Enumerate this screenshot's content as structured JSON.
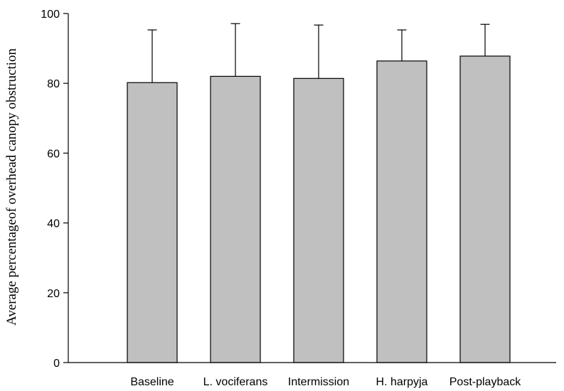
{
  "chart_data": {
    "type": "bar",
    "categories": [
      "Baseline",
      "L. vociferans",
      "Intermission",
      "H. harpyja",
      "Post-playback"
    ],
    "values": [
      80.2,
      82.0,
      81.4,
      86.4,
      87.8
    ],
    "error_upper": [
      95.3,
      97.1,
      96.7,
      95.3,
      96.9
    ],
    "ylabel": "Average percentageof overhead canopy obstruction",
    "xlabel": "",
    "ylim": [
      0,
      100
    ],
    "yticks": [
      0,
      20,
      40,
      60,
      80,
      100
    ],
    "bar_color": "#c0c0c0",
    "grid": false
  }
}
